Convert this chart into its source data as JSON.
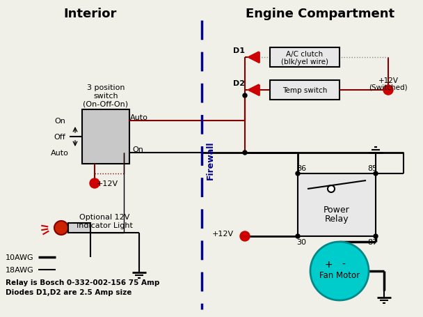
{
  "title_interior": "Interior",
  "title_engine": "Engine Compartment",
  "firewall_label": "Firewall",
  "switch_label1": "3 position",
  "switch_label2": "switch",
  "switch_label3": "(On-Off-On)",
  "on_label": "On",
  "off_label": "Off",
  "auto_label": "Auto",
  "auto_wire_label": "Auto",
  "on_wire_label": "On",
  "plus12v_switch": "+12V",
  "indicator_label1": "Optional 12V",
  "indicator_label2": "Indicator Light",
  "d1_label": "D1",
  "d2_label": "D2",
  "ac_clutch_label1": "A/C clutch",
  "ac_clutch_label2": "(blk/yel wire)",
  "temp_switch_label": "Temp switch",
  "plus12v_switched_1": "+12V",
  "plus12v_switched_2": "(Switched)",
  "relay_86": "86",
  "relay_85": "85",
  "relay_30": "30",
  "relay_87": "87",
  "relay_label1": "Power",
  "relay_label2": "Relay",
  "plus12v_relay": "+12V",
  "fan_motor_label": "Fan Motor",
  "legend_10awg": "10AWG",
  "legend_18awg": "18AWG",
  "note1": "Relay is Bosch 0-332-002-156 75 Amp",
  "note2": "Diodes D1,D2 are 2.5 Amp size",
  "bg_color": "#f0f0e8",
  "wire_dark": "#800000",
  "wire_black": "#000000",
  "firewall_color": "#00008B",
  "box_color": "#d3d3d3",
  "dot_red": "#cc0000",
  "motor_color": "#00cccc",
  "text_color": "#000000"
}
